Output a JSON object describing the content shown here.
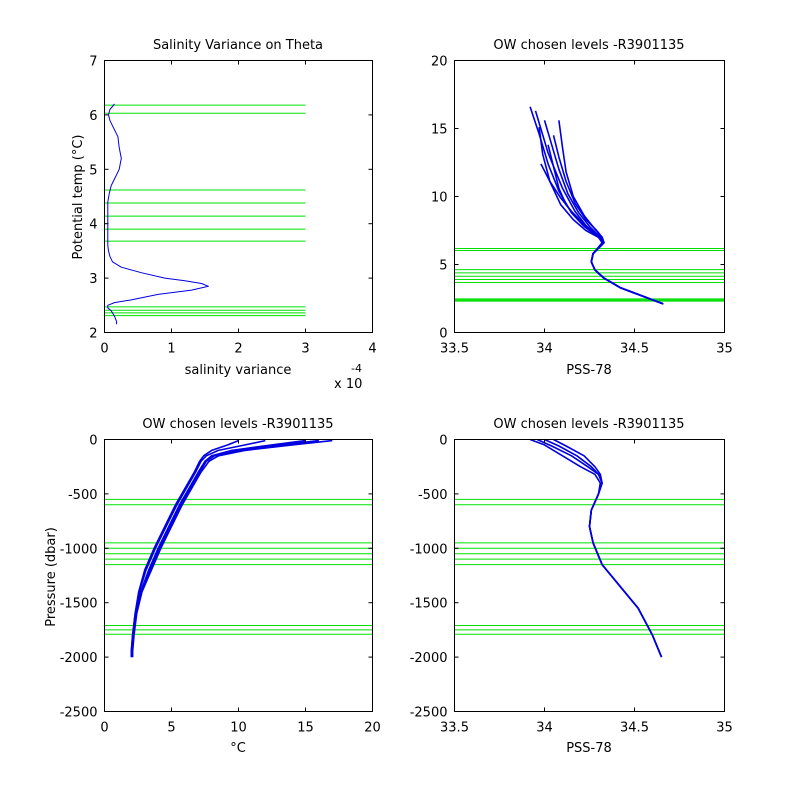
{
  "figure": {
    "background": "#ffffff",
    "level_color": "#00e000",
    "profile_color": "#0000e0"
  },
  "chart_data": [
    {
      "id": "salvar",
      "type": "line",
      "title": "Salinity Variance on Theta",
      "xlabel": "salinity variance",
      "x_multiplier": "x 10",
      "x_multiplier_exponent": "-4",
      "ylabel": "Potential temp (°C)",
      "xlim": [
        0,
        4
      ],
      "ylim": [
        2,
        7
      ],
      "xticks": [
        0,
        1,
        2,
        3,
        4
      ],
      "xtick_labels": [
        "0",
        "1",
        "2",
        "3",
        "4"
      ],
      "yticks": [
        2,
        3,
        4,
        5,
        6,
        7
      ],
      "ytick_labels": [
        "2",
        "3",
        "4",
        "5",
        "6",
        "7"
      ],
      "series": [
        {
          "x": [
            0.15,
            0.08,
            0.06,
            0.08,
            0.12,
            0.2,
            0.22,
            0.25,
            0.22,
            0.16,
            0.1,
            0.07,
            0.05,
            0.05,
            0.05,
            0.05,
            0.05,
            0.06,
            0.08,
            0.12,
            0.25,
            0.55,
            0.9,
            1.2,
            1.45,
            1.55,
            1.3,
            0.8,
            0.4,
            0.15,
            0.05,
            0.05,
            0.1,
            0.15,
            0.18,
            0.18
          ],
          "y": [
            6.2,
            6.1,
            6.0,
            5.9,
            5.8,
            5.6,
            5.4,
            5.2,
            5.0,
            4.85,
            4.7,
            4.55,
            4.4,
            4.2,
            4.0,
            3.8,
            3.6,
            3.5,
            3.4,
            3.3,
            3.2,
            3.1,
            3.0,
            2.95,
            2.9,
            2.85,
            2.78,
            2.7,
            2.6,
            2.55,
            2.5,
            2.45,
            2.4,
            2.3,
            2.2,
            2.15
          ]
        }
      ],
      "level_axis": "y",
      "level_span": [
        0,
        3
      ],
      "levels": [
        6.18,
        6.03,
        4.62,
        4.38,
        4.14,
        3.9,
        3.68,
        2.47,
        2.41,
        2.36,
        2.31
      ]
    },
    {
      "id": "ts",
      "type": "line",
      "title": "OW chosen levels -R3901135",
      "xlabel": "PSS-78",
      "ylabel": "",
      "xlim": [
        33.5,
        35
      ],
      "ylim": [
        0,
        20
      ],
      "xticks": [
        33.5,
        34,
        34.5,
        35
      ],
      "xtick_labels": [
        "33.5",
        "34",
        "34.5",
        "35"
      ],
      "yticks": [
        0,
        5,
        10,
        15,
        20
      ],
      "ytick_labels": [
        "0",
        "5",
        "10",
        "15",
        "20"
      ],
      "series": [
        {
          "x": [
            33.92,
            33.97,
            34.02,
            34.08,
            34.15,
            34.22,
            34.3,
            34.32,
            34.27,
            34.26,
            34.28,
            34.33,
            34.42,
            34.52,
            34.6,
            34.66
          ],
          "y": [
            16.6,
            14.6,
            12.4,
            10.4,
            8.8,
            7.8,
            7.0,
            6.6,
            5.8,
            5.2,
            4.6,
            4.0,
            3.3,
            2.8,
            2.4,
            2.1
          ]
        },
        {
          "x": [
            34.0,
            34.04,
            34.08,
            34.13,
            34.19,
            34.25,
            34.31,
            34.33,
            34.27,
            34.26,
            34.28,
            34.33,
            34.42,
            34.52,
            34.6,
            34.66
          ],
          "y": [
            15.6,
            13.8,
            12.0,
            10.2,
            8.8,
            7.8,
            7.0,
            6.6,
            5.8,
            5.2,
            4.6,
            4.0,
            3.3,
            2.8,
            2.4,
            2.1
          ]
        },
        {
          "x": [
            33.95,
            34.02,
            34.1,
            34.17,
            34.24,
            34.31,
            34.33,
            34.27,
            34.26,
            34.28,
            34.33,
            34.42,
            34.52,
            34.6,
            34.66
          ],
          "y": [
            16.3,
            13.2,
            10.6,
            8.9,
            7.7,
            7.0,
            6.6,
            5.8,
            5.2,
            4.6,
            4.0,
            3.3,
            2.8,
            2.4,
            2.1
          ]
        },
        {
          "x": [
            34.02,
            34.05,
            34.08,
            34.12,
            34.18,
            34.25,
            34.31,
            34.33,
            34.27,
            34.26,
            34.28,
            34.33,
            34.42,
            34.52,
            34.6,
            34.66
          ],
          "y": [
            13.8,
            12.2,
            10.6,
            9.4,
            8.4,
            7.6,
            7.0,
            6.6,
            5.8,
            5.2,
            4.6,
            4.0,
            3.3,
            2.8,
            2.4,
            2.1
          ]
        },
        {
          "x": [
            34.08,
            34.1,
            34.12,
            34.16,
            34.22,
            34.28,
            34.32,
            34.33,
            34.27,
            34.26,
            34.28,
            34.33,
            34.42,
            34.52,
            34.6,
            34.66
          ],
          "y": [
            15.6,
            13.6,
            11.8,
            10.0,
            8.6,
            7.6,
            7.0,
            6.6,
            5.8,
            5.2,
            4.6,
            4.0,
            3.3,
            2.8,
            2.4,
            2.1
          ]
        },
        {
          "x": [
            34.05,
            34.08,
            34.12,
            34.17,
            34.23,
            34.29,
            34.32,
            34.33,
            34.27,
            34.26,
            34.28,
            34.33,
            34.42,
            34.52,
            34.6,
            34.66
          ],
          "y": [
            14.5,
            12.9,
            11.1,
            9.5,
            8.3,
            7.5,
            7.0,
            6.6,
            5.8,
            5.2,
            4.6,
            4.0,
            3.3,
            2.8,
            2.4,
            2.1
          ]
        },
        {
          "x": [
            33.97,
            33.99,
            34.03,
            34.09,
            34.16,
            34.23,
            34.3,
            34.33,
            34.27,
            34.26,
            34.28,
            34.33,
            34.42,
            34.52,
            34.6,
            34.66
          ],
          "y": [
            15.1,
            13.1,
            11.1,
            9.4,
            8.3,
            7.5,
            7.0,
            6.6,
            5.8,
            5.2,
            4.6,
            4.0,
            3.3,
            2.8,
            2.4,
            2.1
          ]
        },
        {
          "x": [
            33.98,
            34.03,
            34.09,
            34.15,
            34.21,
            34.27,
            34.32,
            34.33,
            34.27,
            34.26,
            34.28,
            34.33,
            34.42,
            34.52,
            34.6,
            34.66
          ],
          "y": [
            12.4,
            11.1,
            9.9,
            8.9,
            8.1,
            7.4,
            7.0,
            6.6,
            5.8,
            5.2,
            4.6,
            4.0,
            3.3,
            2.8,
            2.4,
            2.1
          ]
        }
      ],
      "level_axis": "y",
      "level_span": [
        33.5,
        35
      ],
      "levels": [
        6.18,
        6.03,
        4.62,
        4.38,
        4.14,
        3.9,
        3.68,
        2.47,
        2.41,
        2.36,
        2.31
      ]
    },
    {
      "id": "ptemp",
      "type": "line",
      "title": "OW chosen levels -R3901135",
      "xlabel": "°C",
      "ylabel": "Pressure (dbar)",
      "xlim": [
        0,
        20
      ],
      "ylim": [
        -2500,
        0
      ],
      "xticks": [
        0,
        5,
        10,
        15,
        20
      ],
      "xtick_labels": [
        "0",
        "5",
        "10",
        "15",
        "20"
      ],
      "yticks": [
        -2500,
        -2000,
        -1500,
        -1000,
        -500,
        0
      ],
      "ytick_labels": [
        "-2500",
        "-2000",
        "-1500",
        "-1000",
        "-500",
        "0"
      ],
      "series": [
        {
          "x": [
            17.0,
            14.0,
            10.5,
            8.5,
            7.8,
            7.2,
            6.5,
            5.8,
            5.0,
            4.2,
            3.5,
            2.8,
            2.4,
            2.2,
            2.1,
            2.1
          ],
          "y": [
            -10,
            -50,
            -100,
            -150,
            -200,
            -300,
            -450,
            -600,
            -800,
            -1000,
            -1200,
            -1400,
            -1600,
            -1800,
            -1950,
            -2000
          ]
        },
        {
          "x": [
            15.0,
            12.5,
            9.5,
            8.0,
            7.5,
            7.0,
            6.3,
            5.6,
            4.8,
            4.0,
            3.3,
            2.7,
            2.35,
            2.15,
            2.05,
            2.05
          ],
          "y": [
            -10,
            -50,
            -100,
            -150,
            -200,
            -300,
            -450,
            -600,
            -800,
            -1000,
            -1200,
            -1400,
            -1600,
            -1800,
            -1950,
            -2000
          ]
        },
        {
          "x": [
            12.0,
            10.5,
            8.5,
            7.6,
            7.2,
            6.8,
            6.1,
            5.4,
            4.6,
            3.8,
            3.1,
            2.6,
            2.3,
            2.1,
            2.0,
            2.0
          ],
          "y": [
            -10,
            -50,
            -100,
            -150,
            -200,
            -300,
            -450,
            -600,
            -800,
            -1000,
            -1200,
            -1400,
            -1600,
            -1800,
            -1950,
            -2000
          ]
        },
        {
          "x": [
            16.0,
            13.2,
            10.0,
            8.2,
            7.6,
            7.1,
            6.4,
            5.7,
            4.9,
            4.1,
            3.4,
            2.75,
            2.38,
            2.18,
            2.08,
            2.08
          ],
          "y": [
            -10,
            -50,
            -100,
            -150,
            -200,
            -300,
            -450,
            -600,
            -800,
            -1000,
            -1200,
            -1400,
            -1600,
            -1800,
            -1950,
            -2000
          ]
        },
        {
          "x": [
            10.0,
            9.2,
            8.0,
            7.4,
            7.1,
            6.7,
            6.0,
            5.3,
            4.5,
            3.7,
            3.0,
            2.55,
            2.28,
            2.1,
            2.0,
            2.0
          ],
          "y": [
            -10,
            -50,
            -100,
            -150,
            -200,
            -300,
            -450,
            -600,
            -800,
            -1000,
            -1200,
            -1400,
            -1600,
            -1800,
            -1950,
            -2000
          ]
        }
      ],
      "level_axis": "y",
      "level_span": [
        0,
        20
      ],
      "levels": [
        -550,
        -600,
        -950,
        -1000,
        -1050,
        -1100,
        -1150,
        -1710,
        -1750,
        -1790
      ]
    },
    {
      "id": "psal",
      "type": "line",
      "title": "OW chosen levels -R3901135",
      "xlabel": "PSS-78",
      "ylabel": "",
      "xlim": [
        33.5,
        35
      ],
      "ylim": [
        -2500,
        0
      ],
      "xticks": [
        33.5,
        34,
        34.5,
        35
      ],
      "xtick_labels": [
        "33.5",
        "34",
        "34.5",
        "35"
      ],
      "yticks": [
        -2500,
        -2000,
        -1500,
        -1000,
        -500,
        0
      ],
      "ytick_labels": [
        "-2500",
        "-2000",
        "-1500",
        "-1000",
        "-500",
        "0"
      ],
      "series": [
        {
          "x": [
            33.92,
            34.0,
            34.1,
            34.2,
            34.28,
            34.31,
            34.3,
            34.26,
            34.25,
            34.27,
            34.32,
            34.42,
            34.52,
            34.6,
            34.65
          ],
          "y": [
            0,
            -50,
            -150,
            -250,
            -320,
            -400,
            -500,
            -650,
            -800,
            -950,
            -1150,
            -1350,
            -1550,
            -1800,
            -2000
          ]
        },
        {
          "x": [
            34.0,
            34.08,
            34.18,
            34.26,
            34.3,
            34.32,
            34.3,
            34.26,
            34.25,
            34.27,
            34.32,
            34.42,
            34.52,
            34.6,
            34.65
          ],
          "y": [
            0,
            -60,
            -150,
            -250,
            -320,
            -400,
            -500,
            -650,
            -800,
            -950,
            -1150,
            -1350,
            -1550,
            -1800,
            -2000
          ]
        },
        {
          "x": [
            34.05,
            34.12,
            34.22,
            34.28,
            34.31,
            34.32,
            34.3,
            34.26,
            34.25,
            34.27,
            34.32,
            34.42,
            34.52,
            34.6,
            34.65
          ],
          "y": [
            0,
            -60,
            -150,
            -250,
            -320,
            -400,
            -500,
            -650,
            -800,
            -950,
            -1150,
            -1350,
            -1550,
            -1800,
            -2000
          ]
        },
        {
          "x": [
            33.96,
            34.04,
            34.15,
            34.24,
            34.3,
            34.32,
            34.3,
            34.26,
            34.25,
            34.27,
            34.32,
            34.42,
            34.52,
            34.6,
            34.65
          ],
          "y": [
            0,
            -60,
            -150,
            -250,
            -320,
            -400,
            -500,
            -650,
            -800,
            -950,
            -1150,
            -1350,
            -1550,
            -1800,
            -2000
          ]
        }
      ],
      "level_axis": "y",
      "level_span": [
        33.5,
        35
      ],
      "levels": [
        -550,
        -600,
        -950,
        -1000,
        -1050,
        -1100,
        -1150,
        -1710,
        -1750,
        -1790
      ]
    }
  ]
}
